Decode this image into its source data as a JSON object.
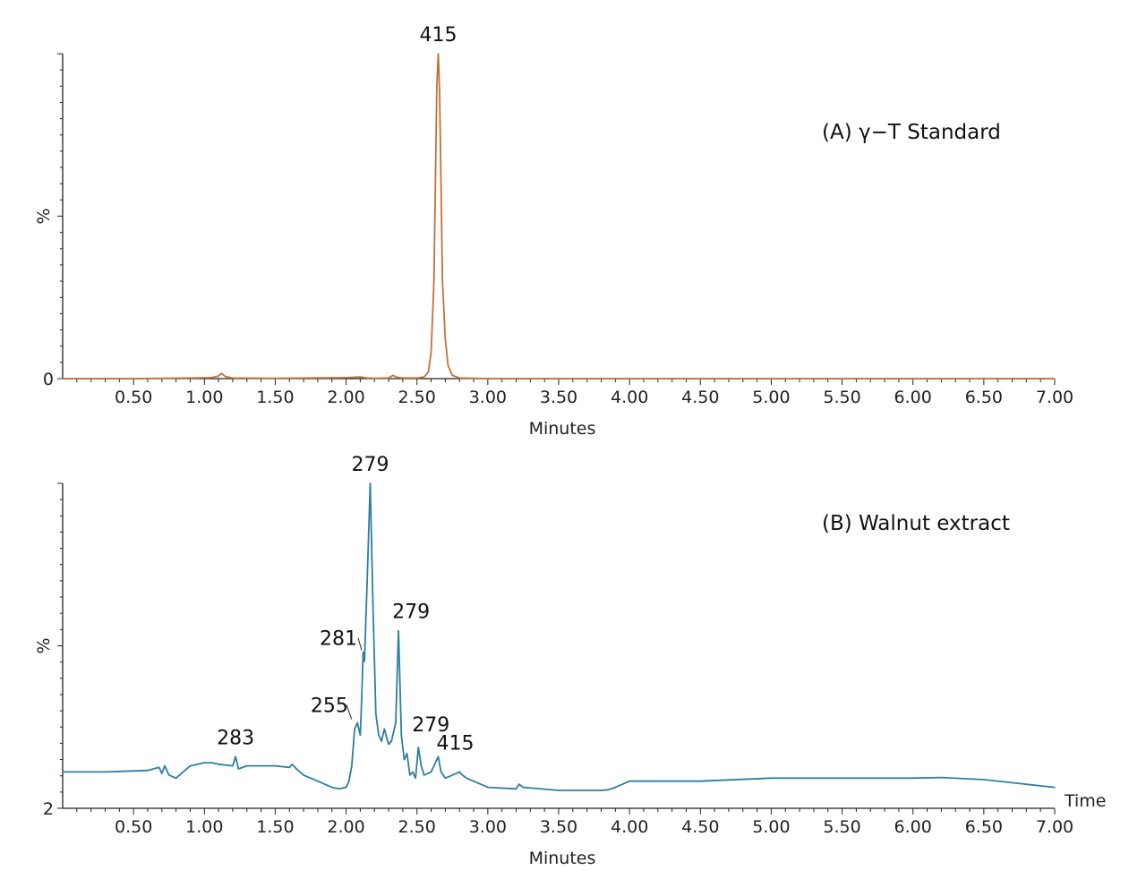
{
  "chart_data": [
    {
      "type": "line",
      "title": "(A) γ−T Standard",
      "xlabel": "Minutes",
      "ylabel": "%",
      "xlim": [
        0,
        7.0
      ],
      "x_ticks": [
        "0.50",
        "1.00",
        "1.50",
        "2.00",
        "2.50",
        "3.00",
        "3.50",
        "4.00",
        "4.50",
        "5.00",
        "5.50",
        "6.00",
        "6.50",
        "7.00"
      ],
      "y_tick_labels": [
        "0"
      ],
      "color": "#c0723a",
      "grid": false,
      "series": [
        {
          "x": [
            0.0,
            0.5,
            0.9,
            1.05,
            1.1,
            1.12,
            1.15,
            1.2,
            1.5,
            2.0,
            2.1,
            2.15,
            2.2,
            2.3,
            2.33,
            2.36,
            2.4,
            2.5,
            2.55,
            2.58,
            2.6,
            2.62,
            2.63,
            2.64,
            2.65,
            2.66,
            2.67,
            2.68,
            2.7,
            2.72,
            2.75,
            2.8,
            3.0,
            4.0,
            5.0,
            6.0,
            7.0
          ],
          "y": [
            0,
            0,
            0.2,
            0.3,
            0.8,
            1.6,
            0.6,
            0.2,
            0.1,
            0.3,
            0.5,
            0.2,
            0.1,
            0.2,
            1.0,
            0.4,
            0.2,
            0.2,
            0.5,
            2,
            8,
            30,
            60,
            90,
            100,
            88,
            60,
            30,
            12,
            4,
            1,
            0.2,
            0,
            0,
            0,
            0,
            0
          ]
        }
      ],
      "peak_labels": [
        {
          "x": 2.65,
          "y": 100,
          "text": "415"
        }
      ]
    },
    {
      "type": "line",
      "title": "(B) Walnut extract",
      "xlabel": "Minutes",
      "ylabel": "%",
      "xlim": [
        0,
        7.0
      ],
      "x_ticks": [
        "0.50",
        "1.00",
        "1.50",
        "2.00",
        "2.50",
        "3.00",
        "3.50",
        "4.00",
        "4.50",
        "5.00",
        "5.50",
        "6.00",
        "6.50",
        "7.00"
      ],
      "y_tick_labels": [
        "2"
      ],
      "right_label": "Time",
      "color": "#2e7f9e",
      "grid": false,
      "series": [
        {
          "x": [
            0.0,
            0.3,
            0.6,
            0.68,
            0.7,
            0.72,
            0.75,
            0.8,
            0.9,
            1.0,
            1.05,
            1.1,
            1.2,
            1.22,
            1.24,
            1.3,
            1.5,
            1.6,
            1.62,
            1.65,
            1.7,
            1.8,
            1.9,
            1.95,
            2.0,
            2.02,
            2.04,
            2.06,
            2.08,
            2.1,
            2.11,
            2.12,
            2.13,
            2.15,
            2.17,
            2.19,
            2.21,
            2.23,
            2.25,
            2.27,
            2.3,
            2.32,
            2.35,
            2.37,
            2.39,
            2.41,
            2.43,
            2.45,
            2.47,
            2.49,
            2.51,
            2.53,
            2.55,
            2.6,
            2.63,
            2.65,
            2.67,
            2.7,
            2.75,
            2.8,
            2.82,
            2.85,
            3.0,
            3.2,
            3.22,
            3.25,
            3.5,
            3.8,
            3.85,
            3.9,
            4.0,
            4.5,
            5.0,
            5.5,
            6.0,
            6.2,
            6.5,
            7.0
          ],
          "y": [
            6,
            6,
            6.5,
            7.5,
            5.5,
            8,
            5,
            4,
            8,
            9,
            9,
            8.5,
            8,
            11,
            7,
            8,
            8,
            7.5,
            8.5,
            7,
            5,
            3,
            1,
            0.5,
            1,
            3,
            8,
            20,
            22,
            18,
            30,
            45,
            42,
            70,
            100,
            60,
            25,
            18,
            16,
            20,
            15,
            16,
            22,
            52,
            18,
            10,
            12,
            5,
            6,
            4,
            14,
            8,
            5,
            6,
            9,
            11,
            6,
            4,
            5,
            6,
            5,
            4,
            1,
            0.5,
            2,
            1,
            0,
            0,
            0.2,
            1,
            3,
            3,
            4,
            4,
            4,
            4.2,
            3.5,
            1
          ]
        }
      ],
      "peak_labels": [
        {
          "x": 1.22,
          "y": 11,
          "text": "283"
        },
        {
          "x": 2.04,
          "y": 22,
          "text": "255"
        },
        {
          "x": 2.11,
          "y": 45,
          "text": "281"
        },
        {
          "x": 2.17,
          "y": 100,
          "text": "279"
        },
        {
          "x": 2.37,
          "y": 52,
          "text": "279"
        },
        {
          "x": 2.51,
          "y": 14,
          "text": "279"
        },
        {
          "x": 2.65,
          "y": 11,
          "text": "415"
        }
      ]
    }
  ]
}
